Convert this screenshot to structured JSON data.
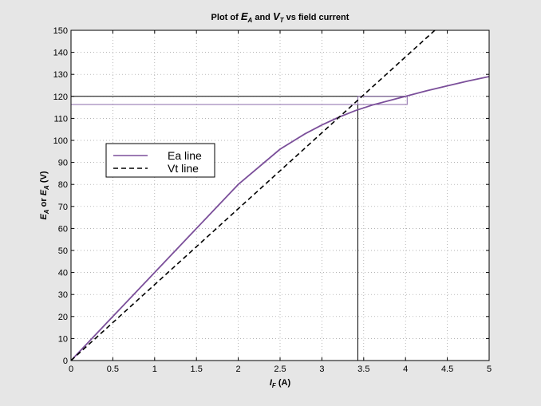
{
  "colors": {
    "figure_background": "#e6e6e6",
    "axes_background": "#ffffff",
    "ea_line": "#7b4f9a",
    "vt_line": "#000000",
    "guide_lines": "#000000",
    "zoom_box": "#8a6aa8",
    "grid": "#9a9a9a"
  },
  "chart_data": {
    "type": "line",
    "title": {
      "prefix": "Plot of ",
      "e_main": "E",
      "e_sub": "A",
      "mid": "  and ",
      "v_main": "V",
      "v_sub": "T",
      "suffix": "  vs field current"
    },
    "xlabel": {
      "main": "I",
      "sub": "F",
      "unit": " (A)"
    },
    "ylabel": {
      "e1": "E",
      "s1": "A",
      "mid": " or ",
      "e2": "E",
      "s2": "A",
      "unit": " (V)"
    },
    "xlim": [
      0,
      5
    ],
    "ylim": [
      0,
      150
    ],
    "xticks": [
      0,
      0.5,
      1,
      1.5,
      2,
      2.5,
      3,
      3.5,
      4,
      4.5,
      5
    ],
    "xtick_labels": [
      "0",
      "0.5",
      "1",
      "1.5",
      "2",
      "2.5",
      "3",
      "3.5",
      "4",
      "4.5",
      "5"
    ],
    "yticks": [
      0,
      10,
      20,
      30,
      40,
      50,
      60,
      70,
      80,
      90,
      100,
      110,
      120,
      130,
      140,
      150
    ],
    "ytick_labels": [
      "0",
      "10",
      "20",
      "30",
      "40",
      "50",
      "60",
      "70",
      "80",
      "90",
      "100",
      "110",
      "120",
      "130",
      "140",
      "150"
    ],
    "grid": true,
    "legend_position": "upper-left",
    "series": [
      {
        "name": "Ea line",
        "style": "solid",
        "x": [
          0,
          0.5,
          1,
          1.5,
          2,
          2.5,
          2.8,
          3,
          3.2,
          3.4,
          3.6,
          3.8,
          4,
          4.25,
          4.5,
          4.75,
          5
        ],
        "y": [
          0,
          20,
          40,
          60,
          80,
          96,
          103,
          107,
          110.5,
          113.5,
          116,
          118,
          120,
          122.5,
          124.8,
          127,
          129
        ]
      },
      {
        "name": "Vt line",
        "style": "dashed",
        "x": [
          0,
          4.35
        ],
        "y": [
          0,
          150
        ]
      }
    ],
    "annotations": {
      "hlines": [
        120,
        116.3
      ],
      "vline": 3.43,
      "zoom_box": {
        "x": [
          3.43,
          4.02
        ],
        "y": [
          116.3,
          120
        ]
      }
    }
  }
}
